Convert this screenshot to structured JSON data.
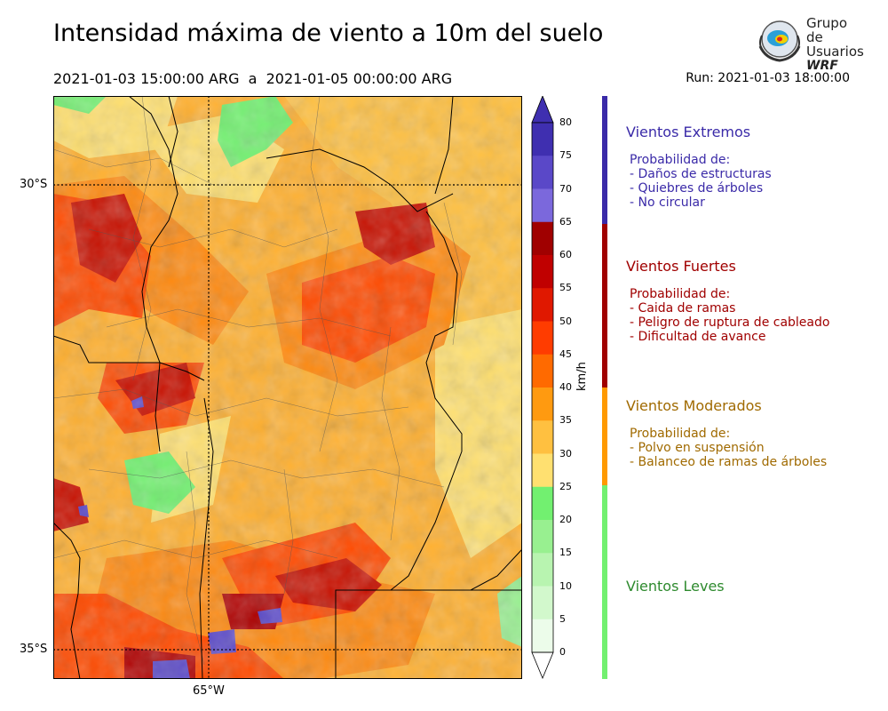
{
  "header": {
    "title": "Intensidad máxima de viento a 10m del suelo",
    "period": "2021-01-03 15:00:00 ARG  a  2021-01-05 00:00:00 ARG",
    "run": "Run: 2021-01-03 18:00:00"
  },
  "logo": {
    "line1": "Grupo de",
    "line2": "Usuarios",
    "line3": "WRF"
  },
  "map": {
    "lat_labels": [
      "30°S",
      "35°S"
    ],
    "lon_labels": [
      "65°W"
    ],
    "grid_style": "dotted"
  },
  "colorbar": {
    "unit": "km/h",
    "ticks": [
      "80",
      "75",
      "70",
      "65",
      "60",
      "55",
      "50",
      "45",
      "40",
      "35",
      "30",
      "25",
      "20",
      "15",
      "10",
      "5",
      "0"
    ],
    "bins": [
      {
        "range": [
          75,
          80
        ],
        "color": "#3f2fb0"
      },
      {
        "range": [
          70,
          75
        ],
        "color": "#5a48c8"
      },
      {
        "range": [
          65,
          70
        ],
        "color": "#7b68dc"
      },
      {
        "range": [
          60,
          65
        ],
        "color": "#a00000"
      },
      {
        "range": [
          55,
          60
        ],
        "color": "#c00000"
      },
      {
        "range": [
          50,
          55
        ],
        "color": "#e01800"
      },
      {
        "range": [
          45,
          50
        ],
        "color": "#ff3c00"
      },
      {
        "range": [
          40,
          45
        ],
        "color": "#ff6a00"
      },
      {
        "range": [
          35,
          40
        ],
        "color": "#ff9a10"
      },
      {
        "range": [
          30,
          35
        ],
        "color": "#ffc040"
      },
      {
        "range": [
          25,
          30
        ],
        "color": "#ffe070"
      },
      {
        "range": [
          20,
          25
        ],
        "color": "#72f070"
      },
      {
        "range": [
          15,
          20
        ],
        "color": "#98f090"
      },
      {
        "range": [
          10,
          15
        ],
        "color": "#b8f4b0"
      },
      {
        "range": [
          5,
          10
        ],
        "color": "#d2f8cc"
      },
      {
        "range": [
          0,
          5
        ],
        "color": "#ecfcea"
      }
    ]
  },
  "legend": {
    "extremos": {
      "title": "Vientos Extremos",
      "color": "#3a2aa8",
      "lines": [
        "Probabilidad de:",
        "- Daños de estructuras",
        "- Quiebres de árboles",
        "- No circular"
      ]
    },
    "fuertes": {
      "title": "Vientos Fuertes",
      "color": "#a00000",
      "lines": [
        "Probabilidad de:",
        "- Caida de ramas",
        "- Peligro de ruptura de cableado",
        "- Dificultad de avance"
      ]
    },
    "moderados": {
      "title": "Vientos Moderados",
      "color": "#a06a00",
      "bar_color": "#ff9a00",
      "lines": [
        "Probabilidad de:",
        "- Polvo en suspensión",
        "- Balanceo de ramas de árboles"
      ]
    },
    "leves": {
      "title": "Vientos Leves",
      "color": "#2e8a2e",
      "bar_color": "#72f070",
      "lines": []
    }
  }
}
